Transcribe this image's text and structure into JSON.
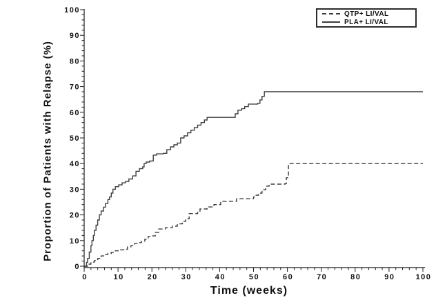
{
  "page": {
    "background": "#ffffff"
  },
  "chart_data": {
    "type": "line",
    "line_interpolation": "step-after",
    "title": "",
    "xlabel": "Time (weeks)",
    "ylabel": "Proportion of Patients with Relapse (%)",
    "xlim": [
      0,
      100
    ],
    "ylim": [
      0,
      100
    ],
    "x_major_ticks": [
      "0",
      "10",
      "20",
      "30",
      "40",
      "50",
      "60",
      "70",
      "80",
      "90",
      "100"
    ],
    "y_major_ticks": [
      "0",
      "10",
      "20",
      "30",
      "40",
      "50",
      "60",
      "70",
      "80",
      "90",
      "100"
    ],
    "x_minor_tick_step": 2,
    "y_minor_tick_step": 2,
    "grid": false,
    "axis_color": "#1a1a1a",
    "label_color": "#111111",
    "line_color": "#3d3d3d",
    "legend_position": "top-right",
    "series": [
      {
        "name": "QTP+ LI/VAL",
        "dash": "dashed",
        "points": [
          [
            0,
            0
          ],
          [
            1,
            0.8
          ],
          [
            2,
            1.6
          ],
          [
            3,
            2.2
          ],
          [
            4,
            3
          ],
          [
            5,
            4
          ],
          [
            6,
            4.6
          ],
          [
            7,
            5
          ],
          [
            8,
            5.4
          ],
          [
            9,
            6
          ],
          [
            10,
            6.4
          ],
          [
            12,
            6.6
          ],
          [
            12.8,
            7.5
          ],
          [
            13.8,
            8
          ],
          [
            14.9,
            8.9
          ],
          [
            15.9,
            9.2
          ],
          [
            16.9,
            9.7
          ],
          [
            17.9,
            10.5
          ],
          [
            18.9,
            11.6
          ],
          [
            20,
            11.8
          ],
          [
            21,
            13.2
          ],
          [
            22,
            14.5
          ],
          [
            24,
            15
          ],
          [
            26,
            15.6
          ],
          [
            27.5,
            16.5
          ],
          [
            29,
            17.5
          ],
          [
            30,
            18.5
          ],
          [
            31,
            20.5
          ],
          [
            33.5,
            21
          ],
          [
            34.2,
            22.3
          ],
          [
            36.3,
            23.1
          ],
          [
            38.3,
            24
          ],
          [
            40.3,
            25.3
          ],
          [
            45,
            26.3
          ],
          [
            50,
            27
          ],
          [
            50.5,
            27.7
          ],
          [
            51.5,
            28.5
          ],
          [
            52.5,
            29.8
          ],
          [
            53.6,
            31.2
          ],
          [
            54.6,
            32
          ],
          [
            59.3,
            32.2
          ],
          [
            59.7,
            34.5
          ],
          [
            60.3,
            40
          ],
          [
            100,
            40
          ]
        ]
      },
      {
        "name": "PLA+ LI/VAL",
        "dash": "solid",
        "points": [
          [
            0,
            0
          ],
          [
            0.7,
            1.5
          ],
          [
            1,
            3
          ],
          [
            1.5,
            5.5
          ],
          [
            2,
            8
          ],
          [
            2.3,
            10
          ],
          [
            2.7,
            12
          ],
          [
            3,
            14
          ],
          [
            3.5,
            16
          ],
          [
            4,
            18
          ],
          [
            4.5,
            20
          ],
          [
            5,
            21.5
          ],
          [
            5.7,
            23
          ],
          [
            6.3,
            24.5
          ],
          [
            7,
            26
          ],
          [
            7.5,
            27
          ],
          [
            8,
            28.5
          ],
          [
            8.5,
            30
          ],
          [
            9.2,
            31
          ],
          [
            10.2,
            31.7
          ],
          [
            11.2,
            32.5
          ],
          [
            12.2,
            33
          ],
          [
            13.2,
            34
          ],
          [
            14.3,
            35.2
          ],
          [
            15.3,
            37
          ],
          [
            16.3,
            38
          ],
          [
            17.3,
            38.7
          ],
          [
            17.7,
            40
          ],
          [
            18.3,
            40.6
          ],
          [
            19.3,
            41
          ],
          [
            20.4,
            43.3
          ],
          [
            21.4,
            43.8
          ],
          [
            23.4,
            44
          ],
          [
            24.4,
            45.4
          ],
          [
            25.5,
            46.5
          ],
          [
            26.5,
            47.3
          ],
          [
            27.5,
            48
          ],
          [
            28.5,
            50
          ],
          [
            29.5,
            50.8
          ],
          [
            30.5,
            52
          ],
          [
            31.5,
            53
          ],
          [
            32.5,
            54
          ],
          [
            33.5,
            55
          ],
          [
            34.5,
            56
          ],
          [
            35.5,
            57
          ],
          [
            36.3,
            58
          ],
          [
            44,
            58
          ],
          [
            44.6,
            59.4
          ],
          [
            45.4,
            60.8
          ],
          [
            46.5,
            61.4
          ],
          [
            47.4,
            62.2
          ],
          [
            48.5,
            63.2
          ],
          [
            51.2,
            63.5
          ],
          [
            51.9,
            64.8
          ],
          [
            52.5,
            66.2
          ],
          [
            53.2,
            68
          ],
          [
            100,
            68
          ]
        ]
      }
    ]
  }
}
